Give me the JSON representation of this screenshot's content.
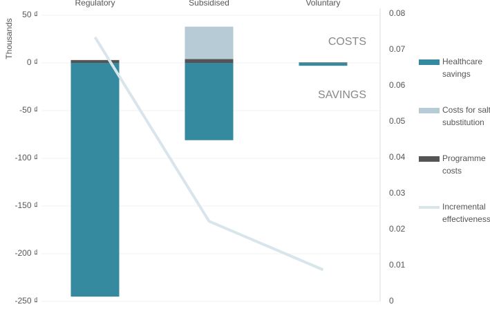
{
  "chart_data": {
    "type": "bar",
    "categories": [
      "Regulatory",
      "Subsidised",
      "Voluntary"
    ],
    "y_label": "Thousands",
    "annotations": [
      "COSTS",
      "SAVINGS"
    ],
    "series": [
      {
        "name": "Healthcare savings",
        "color": "#368aa0",
        "values": [
          -245,
          -81,
          -3
        ]
      },
      {
        "name": "Costs for salt substitution",
        "color": "#b6cbd6",
        "values": [
          0,
          34,
          0
        ]
      },
      {
        "name": "Programme costs",
        "color": "#555555",
        "values": [
          3,
          4,
          0.5
        ]
      },
      {
        "name": "Incremental effectiveness",
        "color": "#d8e6ec",
        "type": "line",
        "axis": "y2",
        "values": [
          0.0735,
          0.0223,
          0.0088
        ]
      }
    ],
    "ylim": [
      -250,
      50
    ],
    "yticks": [
      {
        "value": 50,
        "label": "50 ₫"
      },
      {
        "value": 0,
        "label": "0 ₫"
      },
      {
        "value": -50,
        "label": "-50 ₫"
      },
      {
        "value": -100,
        "label": "-100 ₫"
      },
      {
        "value": -150,
        "label": "-150 ₫"
      },
      {
        "value": -200,
        "label": "-200 ₫"
      },
      {
        "value": -250,
        "label": "-250 ₫"
      }
    ],
    "y2lim": [
      0,
      0.08
    ],
    "y2ticks": [
      0.08,
      0.07,
      0.06,
      0.05,
      0.04,
      0.03,
      0.02,
      0.01,
      0
    ],
    "grid": true
  }
}
